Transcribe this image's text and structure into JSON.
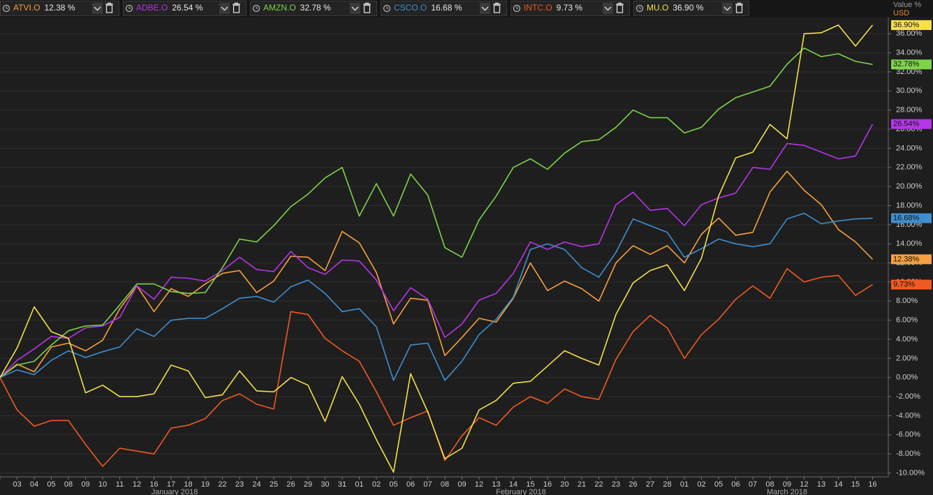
{
  "chart_data": {
    "type": "line",
    "y_axis_label": "Value %",
    "currency": "USD",
    "categories": [
      null,
      "03",
      "04",
      "05",
      "08",
      "09",
      "10",
      "11",
      "12",
      "16",
      "17",
      "18",
      "19",
      "22",
      "23",
      "24",
      "25",
      "26",
      "29",
      "30",
      "31",
      "01",
      "02",
      "05",
      "06",
      "07",
      "08",
      "09",
      "12",
      "13",
      "14",
      "15",
      "16",
      "20",
      "21",
      "22",
      "23",
      "26",
      "27",
      "28",
      "01",
      "02",
      "05",
      "06",
      "07",
      "08",
      "09",
      "12",
      "13",
      "14",
      "15",
      "16"
    ],
    "x_group_labels": [
      "January 2018",
      "February 2018",
      "March 2018"
    ],
    "ylim": [
      -10.4,
      37.7
    ],
    "yticks": [
      {
        "value": -10,
        "label": "-10.00%"
      },
      {
        "value": -8,
        "label": "-8.00%"
      },
      {
        "value": -6,
        "label": "-6.00%"
      },
      {
        "value": -4,
        "label": "-4.00%"
      },
      {
        "value": -2,
        "label": "-2.00%"
      },
      {
        "value": 0,
        "label": "0.00%"
      },
      {
        "value": 2,
        "label": "2.00%"
      },
      {
        "value": 4,
        "label": "4.00%"
      },
      {
        "value": 6,
        "label": "6.00%"
      },
      {
        "value": 8,
        "label": "8.00%"
      },
      {
        "value": 10,
        "label": "10.00%"
      },
      {
        "value": 12,
        "label": "12.00%"
      },
      {
        "value": 14,
        "label": "14.00%"
      },
      {
        "value": 16,
        "label": "16.00%"
      },
      {
        "value": 18,
        "label": "18.00%"
      },
      {
        "value": 20,
        "label": "20.00%"
      },
      {
        "value": 22,
        "label": "22.00%"
      },
      {
        "value": 24,
        "label": "24.00%"
      },
      {
        "value": 26,
        "label": "26.00%"
      },
      {
        "value": 28,
        "label": "28.00%"
      },
      {
        "value": 30,
        "label": "30.00%"
      },
      {
        "value": 32,
        "label": "32.00%"
      },
      {
        "value": 34,
        "label": "34.00%"
      },
      {
        "value": 36,
        "label": "36.00%"
      }
    ],
    "grid": true,
    "series": [
      {
        "name": "ATVI.O",
        "change_label": "12.38 %",
        "end_label": "12.38%",
        "color": "#f7a03c",
        "values": [
          0,
          1.4,
          0.6,
          3.2,
          3.6,
          2.8,
          3.9,
          7.2,
          9.6,
          6.9,
          9.3,
          8.5,
          9.8,
          10.9,
          11.2,
          8.9,
          10.1,
          12.7,
          12.6,
          11.2,
          15.3,
          14.1,
          11.0,
          5.6,
          8.3,
          8.1,
          2.3,
          4.2,
          6.2,
          5.8,
          8.3,
          12.0,
          9.1,
          10.1,
          9.3,
          8.0,
          12.0,
          13.8,
          12.9,
          13.8,
          12.0,
          15.0,
          16.7,
          14.9,
          15.2,
          19.4,
          21.6,
          19.6,
          18.1,
          15.5,
          14.2,
          12.38
        ]
      },
      {
        "name": "ADBE.O",
        "change_label": "26.54 %",
        "end_label": "26.54%",
        "color": "#b536e6",
        "values": [
          0,
          1.8,
          3.0,
          4.3,
          4.1,
          5.2,
          5.4,
          6.3,
          9.6,
          8.2,
          10.5,
          10.4,
          10.1,
          11.2,
          12.6,
          11.3,
          11.1,
          13.2,
          11.5,
          10.8,
          12.3,
          12.2,
          10.2,
          7.0,
          9.4,
          8.2,
          4.2,
          5.6,
          8.1,
          8.8,
          10.9,
          14.2,
          13.4,
          14.2,
          13.7,
          14.0,
          18.1,
          19.4,
          17.5,
          17.7,
          15.9,
          18.1,
          18.8,
          19.3,
          22.0,
          21.8,
          24.5,
          24.3,
          23.6,
          22.9,
          23.2,
          26.54
        ]
      },
      {
        "name": "AMZN.O",
        "change_label": "32.78 %",
        "end_label": "32.78%",
        "color": "#7ed34a",
        "values": [
          0,
          1.3,
          1.7,
          3.4,
          4.9,
          5.4,
          5.5,
          7.6,
          9.8,
          9.8,
          9.0,
          8.8,
          8.9,
          11.5,
          14.5,
          14.2,
          15.9,
          17.9,
          19.2,
          20.9,
          22.0,
          16.9,
          20.3,
          16.9,
          21.3,
          19.1,
          13.6,
          12.6,
          16.5,
          19.0,
          22.0,
          22.9,
          21.8,
          23.5,
          24.7,
          24.9,
          26.2,
          28.0,
          27.2,
          27.2,
          25.6,
          26.2,
          28.1,
          29.3,
          29.9,
          30.5,
          32.8,
          34.5,
          33.6,
          33.9,
          33.1,
          32.78
        ]
      },
      {
        "name": "CSCO.O",
        "change_label": "16.68 %",
        "end_label": "16.68%",
        "color": "#3f8fd0",
        "values": [
          0,
          0.8,
          0.3,
          1.8,
          2.8,
          2.1,
          2.7,
          3.2,
          5.1,
          4.3,
          6.0,
          6.2,
          6.2,
          7.2,
          8.3,
          8.5,
          7.9,
          9.5,
          10.2,
          8.8,
          6.9,
          7.2,
          5.3,
          -0.3,
          3.4,
          3.6,
          -0.3,
          1.7,
          4.5,
          6.1,
          8.4,
          13.4,
          14.0,
          13.4,
          11.5,
          10.5,
          13.1,
          16.6,
          15.9,
          15.2,
          12.6,
          13.5,
          14.5,
          14.0,
          13.7,
          14.0,
          16.6,
          17.2,
          16.1,
          16.4,
          16.6,
          16.68
        ]
      },
      {
        "name": "INTC.O",
        "change_label": "9.73 %",
        "end_label": "9.73%",
        "color": "#f05a22",
        "values": [
          0,
          -3.4,
          -5.1,
          -4.5,
          -4.5,
          -7.0,
          -9.3,
          -7.4,
          -7.7,
          -8.0,
          -5.3,
          -5.0,
          -4.3,
          -2.4,
          -1.7,
          -2.8,
          -3.3,
          6.9,
          6.6,
          4.1,
          2.8,
          1.7,
          -1.5,
          -5.0,
          -4.2,
          -3.5,
          -8.7,
          -6.1,
          -4.2,
          -5.0,
          -3.1,
          -2.0,
          -2.7,
          -1.2,
          -2.0,
          -2.3,
          1.9,
          4.8,
          6.5,
          5.2,
          2.0,
          4.5,
          6.1,
          8.2,
          9.6,
          8.3,
          11.4,
          10.0,
          10.5,
          10.7,
          8.6,
          9.73
        ]
      },
      {
        "name": "MU.O",
        "change_label": "36.90 %",
        "end_label": "36.90%",
        "color": "#f5e04a",
        "values": [
          0,
          3.1,
          7.4,
          4.8,
          4.1,
          -1.6,
          -0.8,
          -2.0,
          -2.0,
          -1.7,
          1.3,
          0.7,
          -2.1,
          -1.8,
          0.7,
          -1.4,
          -1.5,
          0.0,
          -0.8,
          -4.6,
          0.1,
          -2.8,
          -6.5,
          -9.9,
          0.4,
          -3.6,
          -8.5,
          -7.4,
          -3.4,
          -2.4,
          -0.6,
          -0.4,
          1.2,
          2.8,
          2.0,
          1.3,
          6.6,
          9.9,
          11.2,
          11.8,
          9.1,
          12.5,
          19.0,
          23.0,
          23.6,
          26.5,
          25.0,
          36.0,
          36.1,
          36.9,
          34.7,
          36.9
        ]
      }
    ]
  }
}
